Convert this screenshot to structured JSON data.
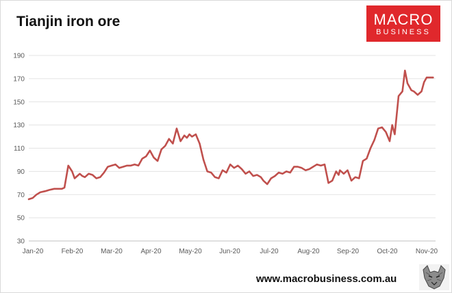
{
  "header": {
    "title": "Tianjin iron ore"
  },
  "brand": {
    "line1": "MACRO",
    "line2": "BUSINESS",
    "color": "#e0282c",
    "icon": "wolf-logo-icon"
  },
  "footer": {
    "url": "www.macrobusiness.com.au"
  },
  "chart_data": {
    "type": "line",
    "title": "Tianjin iron ore",
    "xlabel": "",
    "ylabel": "",
    "ylim": [
      30,
      190
    ],
    "yticks": [
      "30",
      "50",
      "70",
      "90",
      "110",
      "130",
      "150",
      "170",
      "190"
    ],
    "xticks": [
      "Jan-20",
      "Feb-20",
      "Mar-20",
      "Apr-20",
      "May-20",
      "Jun-20",
      "Jul-20",
      "Aug-20",
      "Sep-20",
      "Oct-20",
      "Nov-20"
    ],
    "grid": true,
    "line_color": "#c0504d",
    "series": [
      {
        "x": [
          "2020-01-01",
          "2020-01-04",
          "2020-01-07",
          "2020-01-10",
          "2020-01-14",
          "2020-01-17",
          "2020-01-21",
          "2020-01-24",
          "2020-01-27",
          "2020-01-29",
          "2020-02-01",
          "2020-02-04",
          "2020-02-06",
          "2020-02-08",
          "2020-02-10",
          "2020-02-12",
          "2020-02-14",
          "2020-02-17",
          "2020-02-20",
          "2020-02-23",
          "2020-02-26",
          "2020-02-29",
          "2020-03-03",
          "2020-03-06",
          "2020-03-09",
          "2020-03-12",
          "2020-03-15",
          "2020-03-18",
          "2020-03-21",
          "2020-03-24",
          "2020-03-27",
          "2020-03-30",
          "2020-04-02",
          "2020-04-05",
          "2020-04-08",
          "2020-04-11",
          "2020-04-14",
          "2020-04-17",
          "2020-04-20",
          "2020-04-23",
          "2020-04-26",
          "2020-04-29",
          "2020-05-02",
          "2020-05-04",
          "2020-05-06",
          "2020-05-08",
          "2020-05-11",
          "2020-05-14",
          "2020-05-17",
          "2020-05-20",
          "2020-05-23",
          "2020-05-26",
          "2020-05-29",
          "2020-06-01",
          "2020-06-04",
          "2020-06-07",
          "2020-06-10",
          "2020-06-13",
          "2020-06-16",
          "2020-06-19",
          "2020-06-22",
          "2020-06-25",
          "2020-06-28",
          "2020-07-01",
          "2020-07-03",
          "2020-07-06",
          "2020-07-09",
          "2020-07-12",
          "2020-07-15",
          "2020-07-18",
          "2020-07-21",
          "2020-07-24",
          "2020-07-27",
          "2020-07-30",
          "2020-08-02",
          "2020-08-05",
          "2020-08-08",
          "2020-08-11",
          "2020-08-14",
          "2020-08-17",
          "2020-08-20",
          "2020-08-23",
          "2020-08-26",
          "2020-08-29",
          "2020-08-31",
          "2020-09-01",
          "2020-09-04",
          "2020-09-07",
          "2020-09-10",
          "2020-09-13",
          "2020-09-16",
          "2020-09-19",
          "2020-09-22",
          "2020-09-25",
          "2020-09-28",
          "2020-10-01",
          "2020-10-04",
          "2020-10-07",
          "2020-10-10",
          "2020-10-12",
          "2020-10-14",
          "2020-10-17",
          "2020-10-20",
          "2020-10-22",
          "2020-10-24",
          "2020-10-27",
          "2020-10-29",
          "2020-11-01",
          "2020-11-04",
          "2020-11-06",
          "2020-11-08",
          "2020-11-10",
          "2020-11-13"
        ],
        "values": [
          66,
          67,
          70,
          72,
          73,
          74,
          75,
          75,
          75,
          76,
          95,
          90,
          84,
          86,
          88,
          86,
          85,
          88,
          87,
          84,
          85,
          89,
          94,
          95,
          96,
          93,
          94,
          95,
          95,
          96,
          95,
          101,
          103,
          108,
          102,
          99,
          109,
          112,
          118,
          114,
          127,
          116,
          121,
          119,
          122,
          120,
          122,
          114,
          100,
          90,
          89,
          85,
          84,
          91,
          89,
          96,
          93,
          95,
          92,
          88,
          90,
          86,
          87,
          85,
          82,
          79,
          84,
          86,
          89,
          88,
          90,
          89,
          94,
          94,
          93,
          91,
          92,
          94,
          96,
          95,
          96,
          80,
          82,
          90,
          87,
          91,
          88,
          91,
          82,
          85,
          84,
          99,
          101,
          110,
          117,
          127,
          128,
          124,
          116,
          130,
          122,
          155,
          159,
          177,
          166,
          160,
          159,
          156,
          159,
          167,
          171,
          171,
          171
        ]
      }
    ]
  }
}
